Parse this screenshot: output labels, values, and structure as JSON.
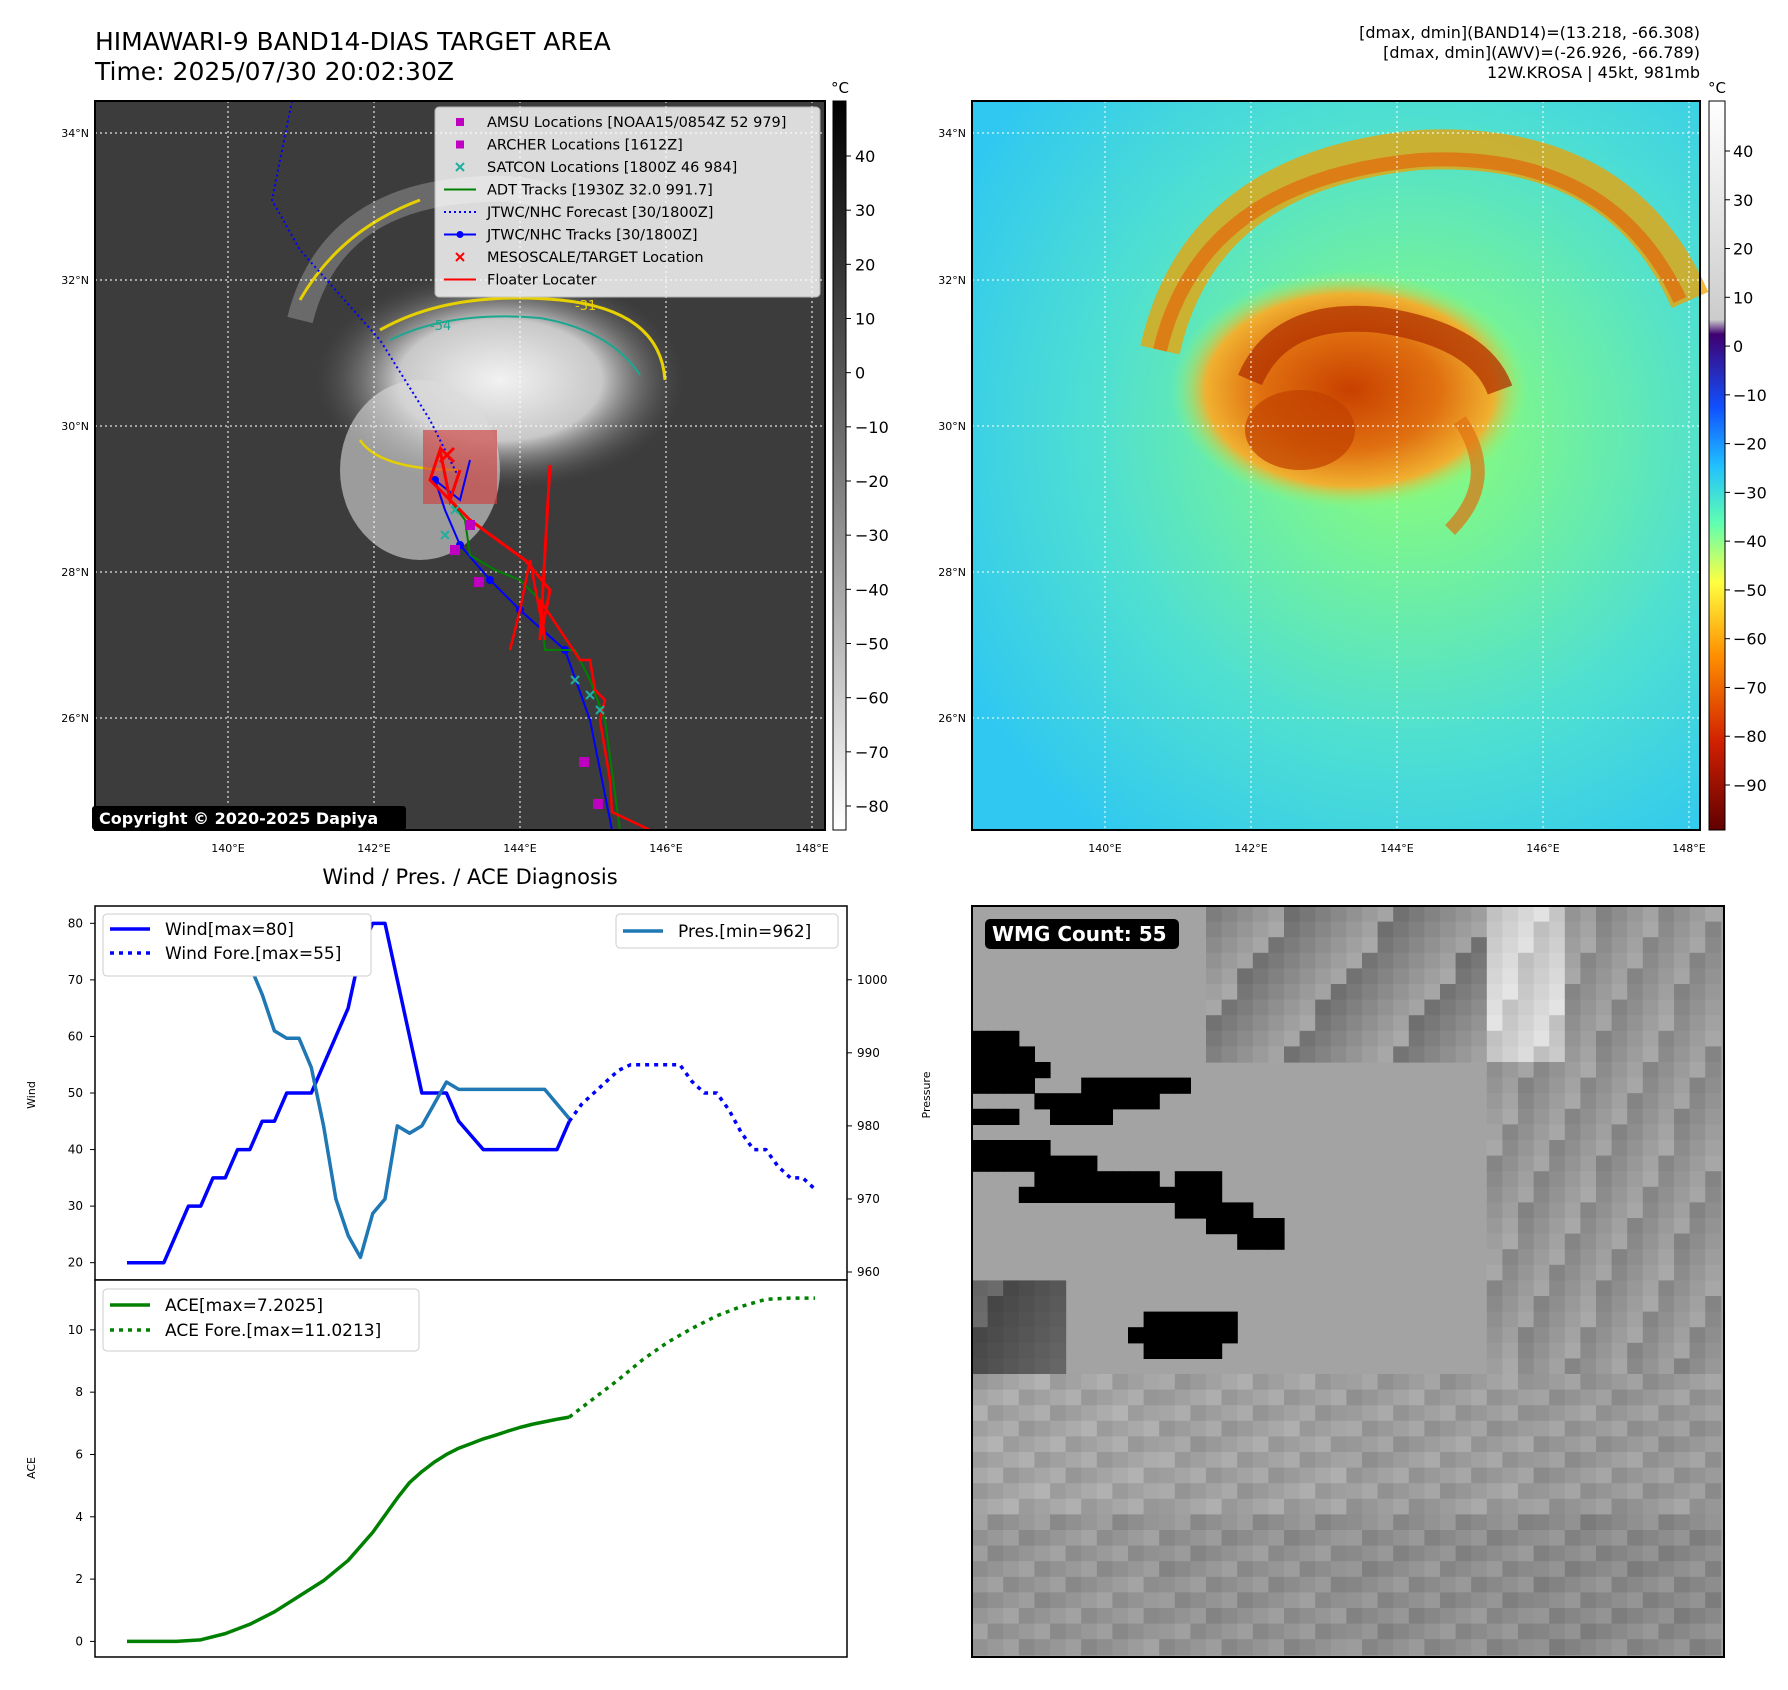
{
  "header": {
    "title_line1": "HIMAWARI-9 BAND14-DIAS TARGET AREA",
    "title_line2": "Time: 2025/07/30 20:02:30Z",
    "info_line1": "[dmax, dmin](BAND14)=(13.218, -66.308)",
    "info_line2": "[dmax, dmin](AWV)=(-26.926, -66.789)",
    "info_line3": "12W.KROSA | 45kt, 981mb"
  },
  "map": {
    "lat_labels": [
      "34°N",
      "32°N",
      "30°N",
      "28°N",
      "26°N"
    ],
    "lon_labels": [
      "140°E",
      "142°E",
      "144°E",
      "146°E",
      "148°E"
    ],
    "copyright": "Copyright © 2020-2025 Dapiya",
    "contour_label_a": "-54",
    "contour_label_b": "-31",
    "legend": [
      {
        "label": "AMSU Locations [NOAA15/0854Z 52 979]",
        "color": "#c000c0",
        "marker": "square"
      },
      {
        "label": "ARCHER Locations [1612Z]",
        "color": "#c000c0",
        "marker": "square"
      },
      {
        "label": "SATCON Locations [1800Z 46 984]",
        "color": "#20b0a0",
        "marker": "x"
      },
      {
        "label": "ADT Tracks [1930Z 32.0 991.7]",
        "color": "#008000",
        "marker": "line"
      },
      {
        "label": "JTWC/NHC Forecast [30/1800Z]",
        "color": "#0000ff",
        "marker": "dotted"
      },
      {
        "label": "JTWC/NHC Tracks [30/1800Z]",
        "color": "#0000ff",
        "marker": "line-dot"
      },
      {
        "label": "MESOSCALE/TARGET Location",
        "color": "#ff0000",
        "marker": "x"
      },
      {
        "label": "Floater Locater",
        "color": "#ff0000",
        "marker": "line"
      }
    ]
  },
  "colorbar_gray": {
    "unit": "°C",
    "ticks": [
      "40",
      "30",
      "20",
      "10",
      "0",
      "−10",
      "−20",
      "−30",
      "−40",
      "−50",
      "−60",
      "−70",
      "−80"
    ]
  },
  "colorbar_color": {
    "unit": "°C",
    "ticks": [
      "40",
      "30",
      "20",
      "10",
      "0",
      "−10",
      "−20",
      "−30",
      "−40",
      "−50",
      "−60",
      "−70",
      "−80",
      "−90"
    ]
  },
  "wmg": {
    "label": "WMG Count: 55"
  },
  "colors": {
    "wind": "#0000ff",
    "pressure": "#1f77b4",
    "ace": "#008000",
    "floater": "#ff0000"
  },
  "chart_data": [
    {
      "type": "line",
      "title": "Wind / Pres. / ACE Diagnosis",
      "ylabel": "Wind",
      "y2label": "Pressure",
      "ylim": [
        18,
        82
      ],
      "y2lim": [
        960,
        1009
      ],
      "yticks": [
        20,
        30,
        40,
        50,
        60,
        70,
        80
      ],
      "y2ticks": [
        960,
        970,
        980,
        990,
        1000
      ],
      "x": [
        0,
        1,
        2,
        3,
        4,
        5,
        6,
        7,
        8,
        9,
        10,
        11,
        12,
        13,
        14,
        15,
        16,
        17,
        18,
        19,
        20,
        21,
        22,
        23,
        24,
        25,
        26,
        27,
        28,
        29,
        30,
        31,
        32,
        33,
        34,
        35,
        36,
        37,
        38,
        39,
        40,
        41,
        42,
        43,
        44,
        45,
        46,
        47,
        48,
        49,
        50,
        51,
        52,
        53,
        54,
        55,
        56
      ],
      "series": [
        {
          "name": "Wind[max=80]",
          "axis": "left",
          "style": "solid",
          "color": "#0000ff",
          "x": [
            0,
            3,
            5,
            6,
            7,
            8,
            9,
            10,
            11,
            12,
            13,
            14,
            15,
            16,
            17,
            18,
            19,
            20,
            21,
            22,
            23,
            24,
            26,
            27,
            29,
            30,
            31,
            32,
            33,
            34,
            35,
            36
          ],
          "values": [
            20,
            20,
            30,
            30,
            35,
            35,
            40,
            40,
            45,
            45,
            50,
            50,
            50,
            55,
            60,
            65,
            75,
            80,
            80,
            70,
            60,
            50,
            50,
            45,
            40,
            40,
            40,
            40,
            40,
            40,
            40,
            45
          ]
        },
        {
          "name": "Wind Fore.[max=55]",
          "axis": "left",
          "style": "dotted",
          "color": "#0000ff",
          "x": [
            36,
            37,
            38,
            39,
            40,
            41,
            42,
            43,
            44,
            45,
            46,
            47,
            48,
            49,
            50,
            51,
            52,
            53,
            54,
            55,
            56
          ],
          "values": [
            45,
            48,
            50,
            52,
            54,
            55,
            55,
            55,
            55,
            55,
            52,
            50,
            50,
            47,
            43,
            40,
            40,
            37,
            35,
            35,
            33
          ]
        },
        {
          "name": "Pres.[min=962]",
          "axis": "right",
          "style": "solid",
          "color": "#1f77b4",
          "x": [
            0,
            1,
            2,
            3,
            4,
            5,
            6,
            7,
            8,
            9,
            10,
            11,
            12,
            13,
            14,
            15,
            16,
            17,
            18,
            19,
            20,
            21,
            22,
            23,
            24,
            25,
            26,
            27,
            28,
            29,
            30,
            31,
            32,
            33,
            34,
            35,
            36
          ],
          "values": [
            1008,
            1008,
            1008,
            1006,
            1006,
            1005,
            1005,
            1003,
            1003,
            1002,
            1002,
            998,
            993,
            992,
            992,
            988,
            980,
            970,
            965,
            962,
            968,
            970,
            980,
            979,
            980,
            983,
            986,
            985,
            985,
            985,
            985,
            985,
            985,
            985,
            985,
            983,
            981
          ]
        }
      ]
    },
    {
      "type": "line",
      "ylabel": "ACE",
      "ylim": [
        -0.5,
        11.6
      ],
      "yticks": [
        0,
        2,
        4,
        6,
        8,
        10
      ],
      "series": [
        {
          "name": "ACE[max=7.2025]",
          "style": "solid",
          "color": "#008000",
          "x": [
            0,
            2,
            4,
            6,
            8,
            10,
            12,
            14,
            16,
            18,
            20,
            21,
            22,
            23,
            24,
            25,
            26,
            27,
            28,
            29,
            30,
            31,
            32,
            33,
            34,
            35,
            36
          ],
          "values": [
            0,
            0,
            0,
            0.05,
            0.25,
            0.55,
            0.95,
            1.45,
            1.95,
            2.6,
            3.5,
            4.05,
            4.6,
            5.1,
            5.45,
            5.75,
            6.0,
            6.2,
            6.35,
            6.5,
            6.62,
            6.75,
            6.87,
            6.97,
            7.05,
            7.13,
            7.2
          ]
        },
        {
          "name": "ACE Fore.[max=11.0213]",
          "style": "dotted",
          "color": "#008000",
          "x": [
            36,
            38,
            40,
            42,
            44,
            46,
            48,
            50,
            52,
            54,
            56
          ],
          "values": [
            7.2,
            7.8,
            8.4,
            9.05,
            9.6,
            10.05,
            10.45,
            10.75,
            10.98,
            11.02,
            11.02
          ]
        }
      ]
    }
  ]
}
